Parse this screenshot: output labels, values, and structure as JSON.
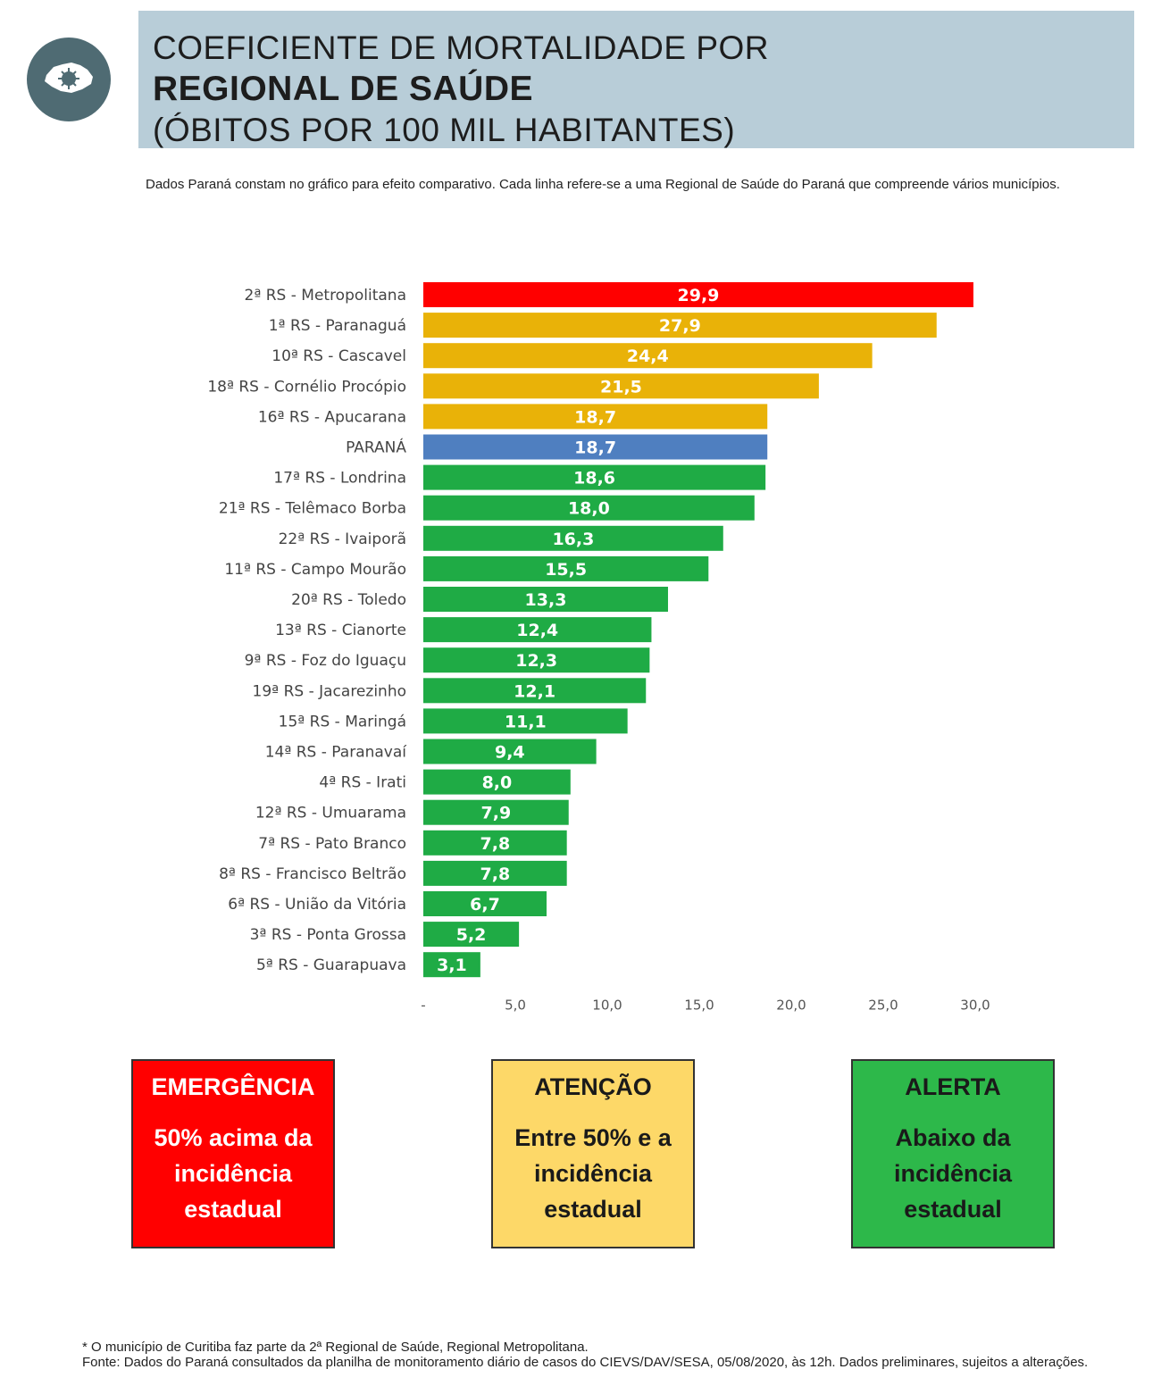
{
  "header": {
    "line1": "COEFICIENTE DE MORTALIDADE POR",
    "line2": "REGIONAL DE SAÚDE",
    "line3": "(ÓBITOS POR 100 MIL HABITANTES)"
  },
  "logo": {
    "icon": "parana-virus-icon",
    "color": "#4f6b73"
  },
  "note": "Dados Paraná constam no gráfico para efeito comparativo. Cada linha refere-se a uma Regional de Saúde do Paraná que compreende vários municípios.",
  "chart_data": {
    "type": "bar",
    "orientation": "horizontal",
    "categories": [
      "2ª RS - Metropolitana",
      "1ª RS - Paranaguá",
      "10ª RS - Cascavel",
      "18ª RS - Cornélio Procópio",
      "16ª RS - Apucarana",
      "PARANÁ",
      "17ª RS - Londrina",
      "21ª RS - Telêmaco Borba",
      "22ª RS - Ivaiporã",
      "11ª RS - Campo Mourão",
      "20ª RS - Toledo",
      "13ª RS - Cianorte",
      "9ª RS - Foz do Iguaçu",
      "19ª RS - Jacarezinho",
      "15ª RS - Maringá",
      "14ª RS - Paranavaí",
      "4ª RS - Irati",
      "12ª RS - Umuarama",
      "7ª RS - Pato Branco",
      "8ª RS - Francisco Beltrão",
      "6ª RS - União da Vitória",
      "3ª RS - Ponta Grossa",
      "5ª RS - Guarapuava"
    ],
    "values": [
      29.9,
      27.9,
      24.4,
      21.5,
      18.7,
      18.7,
      18.6,
      18.0,
      16.3,
      15.5,
      13.3,
      12.4,
      12.3,
      12.1,
      11.1,
      9.4,
      8.0,
      7.9,
      7.8,
      7.8,
      6.7,
      5.2,
      3.1
    ],
    "value_labels": [
      "29,9",
      "27,9",
      "24,4",
      "21,5",
      "18,7",
      "18,7",
      "18,6",
      "18,0",
      "16,3",
      "15,5",
      "13,3",
      "12,4",
      "12,3",
      "12,1",
      "11,1",
      "9,4",
      "8,0",
      "7,9",
      "7,8",
      "7,8",
      "6,7",
      "5,2",
      "3,1"
    ],
    "levels": [
      "emergencia",
      "atencao",
      "atencao",
      "atencao",
      "atencao",
      "parana",
      "alerta",
      "alerta",
      "alerta",
      "alerta",
      "alerta",
      "alerta",
      "alerta",
      "alerta",
      "alerta",
      "alerta",
      "alerta",
      "alerta",
      "alerta",
      "alerta",
      "alerta",
      "alerta",
      "alerta"
    ],
    "colors": {
      "emergencia": "#ff0000",
      "atencao": "#e9b208",
      "parana": "#4f7fc0",
      "alerta": "#1fab45"
    },
    "xlim": [
      0,
      30
    ],
    "x_ticks": [
      0,
      5,
      10,
      15,
      20,
      25,
      30
    ],
    "x_tick_labels": [
      "-",
      "5,0",
      "10,0",
      "15,0",
      "20,0",
      "25,0",
      "30,0"
    ],
    "grid": false,
    "title": "",
    "xlabel": "",
    "ylabel": ""
  },
  "legend_boxes": [
    {
      "title": "EMERGÊNCIA",
      "desc": "50% acima da incidência estadual",
      "color": "#ff0000"
    },
    {
      "title": "ATENÇÃO",
      "desc": "Entre 50% e a incidência estadual",
      "color": "#fdd868"
    },
    {
      "title": "ALERTA",
      "desc": "Abaixo da incidência estadual",
      "color": "#2db84a"
    }
  ],
  "footer": {
    "line1": "* O município de Curitiba faz parte da 2ª Regional de Saúde, Regional Metropolitana.",
    "line2": "Fonte: Dados do Paraná consultados da planilha de monitoramento diário de casos do CIEVS/DAV/SESA, 05/08/2020, às 12h. Dados preliminares, sujeitos a alterações."
  }
}
